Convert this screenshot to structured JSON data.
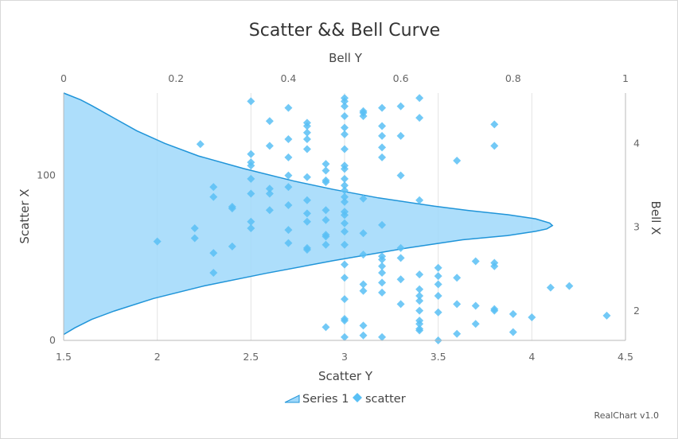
{
  "chart_data": {
    "type": "scatter",
    "title": "Scatter && Bell Curve",
    "x_axis_bottom": {
      "title": "Scatter Y",
      "min": 1.5,
      "max": 4.5,
      "ticks": [
        "1.5",
        "2",
        "2.5",
        "3",
        "3.5",
        "4",
        "4.5"
      ]
    },
    "x_axis_top": {
      "title": "Bell Y",
      "min": 0,
      "max": 1,
      "ticks": [
        "0",
        "0.2",
        "0.4",
        "0.6",
        "0.8",
        "1"
      ]
    },
    "y_axis_left": {
      "title": "Scatter X",
      "min": 0,
      "max": 150,
      "ticks": [
        "0",
        "100"
      ]
    },
    "y_axis_right": {
      "title": "Bell X",
      "min": 1.65,
      "max": 4.6,
      "ticks": [
        "2",
        "3",
        "4"
      ]
    },
    "grid": true,
    "legend_position": "bottom",
    "credit": "RealChart v1.0",
    "series": [
      {
        "name": "Series 1",
        "type": "area",
        "color": "#1f94d8",
        "fill": "#9fd8fa",
        "points": [
          [
            4.6,
            0.0
          ],
          [
            4.52,
            0.03
          ],
          [
            4.45,
            0.05
          ],
          [
            4.3,
            0.09
          ],
          [
            4.15,
            0.13
          ],
          [
            4.0,
            0.18
          ],
          [
            3.85,
            0.24
          ],
          [
            3.7,
            0.32
          ],
          [
            3.55,
            0.41
          ],
          [
            3.45,
            0.48
          ],
          [
            3.35,
            0.56
          ],
          [
            3.25,
            0.66
          ],
          [
            3.2,
            0.72
          ],
          [
            3.15,
            0.79
          ],
          [
            3.1,
            0.84
          ],
          [
            3.05,
            0.865
          ],
          [
            3.02,
            0.87
          ],
          [
            2.98,
            0.86
          ],
          [
            2.95,
            0.84
          ],
          [
            2.9,
            0.79
          ],
          [
            2.85,
            0.71
          ],
          [
            2.75,
            0.61
          ],
          [
            2.6,
            0.48
          ],
          [
            2.45,
            0.36
          ],
          [
            2.3,
            0.25
          ],
          [
            2.15,
            0.16
          ],
          [
            2.0,
            0.09
          ],
          [
            1.9,
            0.05
          ],
          [
            1.8,
            0.02
          ],
          [
            1.72,
            0.0
          ]
        ]
      },
      {
        "name": "scatter",
        "type": "scatter",
        "color": "#59c0f5",
        "points": [
          [
            2.0,
            60
          ],
          [
            2.2,
            62
          ],
          [
            2.2,
            68
          ],
          [
            2.23,
            119
          ],
          [
            2.3,
            41
          ],
          [
            2.3,
            53
          ],
          [
            2.3,
            87
          ],
          [
            2.3,
            93
          ],
          [
            2.4,
            57
          ],
          [
            2.4,
            80
          ],
          [
            2.4,
            81
          ],
          [
            2.5,
            68
          ],
          [
            2.5,
            72
          ],
          [
            2.5,
            89
          ],
          [
            2.5,
            98
          ],
          [
            2.5,
            106
          ],
          [
            2.5,
            108
          ],
          [
            2.5,
            113
          ],
          [
            2.5,
            145
          ],
          [
            2.6,
            79
          ],
          [
            2.6,
            89
          ],
          [
            2.6,
            92
          ],
          [
            2.6,
            118
          ],
          [
            2.6,
            133
          ],
          [
            2.7,
            59
          ],
          [
            2.7,
            67
          ],
          [
            2.7,
            82
          ],
          [
            2.7,
            93
          ],
          [
            2.7,
            100
          ],
          [
            2.7,
            111
          ],
          [
            2.7,
            122
          ],
          [
            2.7,
            141
          ],
          [
            2.8,
            55
          ],
          [
            2.8,
            56
          ],
          [
            2.8,
            72
          ],
          [
            2.8,
            77
          ],
          [
            2.8,
            85
          ],
          [
            2.8,
            99
          ],
          [
            2.8,
            116
          ],
          [
            2.8,
            122
          ],
          [
            2.8,
            126
          ],
          [
            2.8,
            130
          ],
          [
            2.8,
            132
          ],
          [
            2.9,
            8
          ],
          [
            2.9,
            58
          ],
          [
            2.9,
            63
          ],
          [
            2.9,
            64
          ],
          [
            2.9,
            73
          ],
          [
            2.9,
            79
          ],
          [
            2.9,
            96
          ],
          [
            2.9,
            97
          ],
          [
            2.9,
            103
          ],
          [
            2.9,
            107
          ],
          [
            3.0,
            2
          ],
          [
            3.0,
            12
          ],
          [
            3.0,
            13
          ],
          [
            3.0,
            25
          ],
          [
            3.0,
            38
          ],
          [
            3.0,
            46
          ],
          [
            3.0,
            58
          ],
          [
            3.0,
            66
          ],
          [
            3.0,
            71
          ],
          [
            3.0,
            76
          ],
          [
            3.0,
            78
          ],
          [
            3.0,
            84
          ],
          [
            3.0,
            87
          ],
          [
            3.0,
            91
          ],
          [
            3.0,
            94
          ],
          [
            3.0,
            98
          ],
          [
            3.0,
            104
          ],
          [
            3.0,
            106
          ],
          [
            3.0,
            116
          ],
          [
            3.0,
            125
          ],
          [
            3.0,
            129
          ],
          [
            3.0,
            136
          ],
          [
            3.0,
            142
          ],
          [
            3.0,
            145
          ],
          [
            3.0,
            147
          ],
          [
            3.1,
            3
          ],
          [
            3.1,
            9
          ],
          [
            3.1,
            30
          ],
          [
            3.1,
            34
          ],
          [
            3.1,
            52
          ],
          [
            3.1,
            65
          ],
          [
            3.1,
            86
          ],
          [
            3.1,
            136
          ],
          [
            3.1,
            138
          ],
          [
            3.1,
            139
          ],
          [
            3.2,
            2
          ],
          [
            3.2,
            29
          ],
          [
            3.2,
            35
          ],
          [
            3.2,
            41
          ],
          [
            3.2,
            45
          ],
          [
            3.2,
            49
          ],
          [
            3.2,
            51
          ],
          [
            3.2,
            70
          ],
          [
            3.2,
            111
          ],
          [
            3.2,
            117
          ],
          [
            3.2,
            124
          ],
          [
            3.2,
            130
          ],
          [
            3.2,
            141
          ],
          [
            3.3,
            22
          ],
          [
            3.3,
            37
          ],
          [
            3.3,
            50
          ],
          [
            3.3,
            56
          ],
          [
            3.3,
            100
          ],
          [
            3.3,
            124
          ],
          [
            3.3,
            142
          ],
          [
            3.4,
            6
          ],
          [
            3.4,
            7
          ],
          [
            3.4,
            10
          ],
          [
            3.4,
            12
          ],
          [
            3.4,
            18
          ],
          [
            3.4,
            24
          ],
          [
            3.4,
            27
          ],
          [
            3.4,
            31
          ],
          [
            3.4,
            40
          ],
          [
            3.4,
            85
          ],
          [
            3.4,
            135
          ],
          [
            3.4,
            147
          ],
          [
            3.5,
            0
          ],
          [
            3.5,
            17
          ],
          [
            3.5,
            27
          ],
          [
            3.5,
            34
          ],
          [
            3.5,
            39
          ],
          [
            3.5,
            44
          ],
          [
            3.6,
            4
          ],
          [
            3.6,
            22
          ],
          [
            3.6,
            38
          ],
          [
            3.6,
            109
          ],
          [
            3.7,
            10
          ],
          [
            3.7,
            21
          ],
          [
            3.7,
            48
          ],
          [
            3.8,
            18
          ],
          [
            3.8,
            19
          ],
          [
            3.8,
            45
          ],
          [
            3.8,
            47
          ],
          [
            3.8,
            118
          ],
          [
            3.8,
            131
          ],
          [
            3.9,
            5
          ],
          [
            3.9,
            16
          ],
          [
            4.0,
            14
          ],
          [
            4.1,
            32
          ],
          [
            4.2,
            33
          ],
          [
            4.4,
            15
          ]
        ]
      }
    ]
  }
}
